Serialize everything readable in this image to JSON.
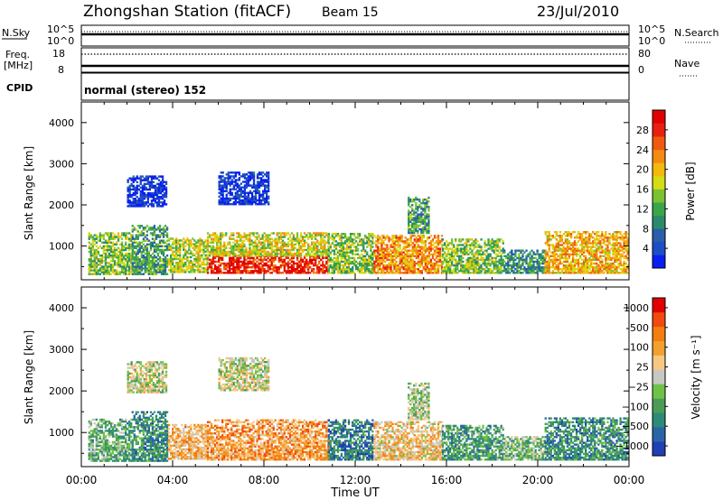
{
  "header": {
    "station": "Zhongshan Station (fitACF)",
    "beam": "Beam 15",
    "date": "23/Jul/2010"
  },
  "top_panels": {
    "nsky_label": "N.Sky",
    "nsearch_label": "N.Search",
    "left_ticks": [
      "10^5",
      "10^0"
    ],
    "right_ticks": [
      "10^5",
      "10^0"
    ],
    "freq_label_1": "Freq.",
    "freq_label_2": "[MHz]",
    "freq_ticks": [
      "18",
      "8"
    ],
    "nave_label": "Nave",
    "nave_ticks": [
      "80",
      "0"
    ],
    "cpid_label": "CPID",
    "cpid_text": "normal (stereo) 152"
  },
  "chart_data": [
    {
      "type": "heatmap",
      "name": "power",
      "title": "",
      "ylabel": "Slant Range [km]",
      "xlabel": "",
      "ylim": [
        180,
        4500
      ],
      "xlim_hours": [
        0,
        24
      ],
      "yticks": [
        "1000",
        "2000",
        "3000",
        "4000"
      ],
      "xticks": [
        "00:00",
        "04:00",
        "08:00",
        "12:00",
        "16:00",
        "20:00",
        "00:00"
      ],
      "colorbar": {
        "label": "Power [dB]",
        "ticks": [
          "4",
          "8",
          "12",
          "16",
          "20",
          "24",
          "28"
        ],
        "colors": [
          "#0a1ef0",
          "#1c4ec8",
          "#2a5ea8",
          "#2c8a6c",
          "#3aa64a",
          "#7cc230",
          "#d4dc14",
          "#f2b90c",
          "#f48a10",
          "#f05a10",
          "#e82010",
          "#e00000"
        ]
      },
      "regions": [
        {
          "t0": 0.3,
          "t1": 2.2,
          "r0": 300,
          "r1": 1300,
          "level": 0.45
        },
        {
          "t0": 2.2,
          "t1": 3.8,
          "r0": 300,
          "r1": 1500,
          "level": 0.35
        },
        {
          "t0": 3.8,
          "t1": 5.5,
          "r0": 350,
          "r1": 1200,
          "level": 0.5
        },
        {
          "t0": 5.5,
          "t1": 10.8,
          "r0": 330,
          "r1": 750,
          "level": 0.9
        },
        {
          "t0": 5.5,
          "t1": 10.8,
          "r0": 750,
          "r1": 1300,
          "level": 0.55
        },
        {
          "t0": 10.8,
          "t1": 12.8,
          "r0": 330,
          "r1": 1300,
          "level": 0.45
        },
        {
          "t0": 12.8,
          "t1": 15.8,
          "r0": 330,
          "r1": 1250,
          "level": 0.7
        },
        {
          "t0": 15.8,
          "t1": 18.5,
          "r0": 330,
          "r1": 1150,
          "level": 0.45
        },
        {
          "t0": 18.5,
          "t1": 20.3,
          "r0": 330,
          "r1": 900,
          "level": 0.3
        },
        {
          "t0": 20.3,
          "t1": 24.0,
          "r0": 330,
          "r1": 1350,
          "level": 0.65
        },
        {
          "t0": 2.0,
          "t1": 3.7,
          "r0": 1950,
          "r1": 2700,
          "level": 0.08
        },
        {
          "t0": 6.0,
          "t1": 8.2,
          "r0": 2000,
          "r1": 2800,
          "level": 0.08
        },
        {
          "t0": 14.3,
          "t1": 15.2,
          "r0": 1300,
          "r1": 2200,
          "level": 0.35
        }
      ]
    },
    {
      "type": "heatmap",
      "name": "velocity",
      "title": "",
      "ylabel": "Slant Range [km]",
      "xlabel": "Time UT",
      "ylim": [
        180,
        4500
      ],
      "xlim_hours": [
        0,
        24
      ],
      "yticks": [
        "1000",
        "2000",
        "3000",
        "4000"
      ],
      "xticks": [
        "00:00",
        "04:00",
        "08:00",
        "12:00",
        "16:00",
        "20:00",
        "00:00"
      ],
      "colorbar": {
        "label": "Velocity [m s⁻¹]",
        "ticks": [
          "1000",
          "500",
          "100",
          "25",
          "−25",
          "−100",
          "−500",
          "−1000"
        ],
        "colors": [
          "#1f3fb4",
          "#2a64a6",
          "#2c8a78",
          "#4c9c58",
          "#70c246",
          "#c8c8c2",
          "#f6c882",
          "#f2a030",
          "#f47d10",
          "#f04a10",
          "#e00000"
        ]
      },
      "regions": [
        {
          "t0": 0.3,
          "t1": 2.2,
          "r0": 300,
          "r1": 1300,
          "level": 0.35
        },
        {
          "t0": 2.2,
          "t1": 3.8,
          "r0": 300,
          "r1": 1500,
          "level": 0.25
        },
        {
          "t0": 3.8,
          "t1": 5.5,
          "r0": 350,
          "r1": 1200,
          "level": 0.65
        },
        {
          "t0": 5.5,
          "t1": 10.8,
          "r0": 330,
          "r1": 1300,
          "level": 0.7
        },
        {
          "t0": 10.8,
          "t1": 12.8,
          "r0": 330,
          "r1": 1300,
          "level": 0.2
        },
        {
          "t0": 12.8,
          "t1": 15.8,
          "r0": 330,
          "r1": 1250,
          "level": 0.6
        },
        {
          "t0": 15.8,
          "t1": 18.5,
          "r0": 330,
          "r1": 1150,
          "level": 0.3
        },
        {
          "t0": 18.5,
          "t1": 20.3,
          "r0": 330,
          "r1": 900,
          "level": 0.4
        },
        {
          "t0": 20.3,
          "t1": 24.0,
          "r0": 330,
          "r1": 1350,
          "level": 0.25
        },
        {
          "t0": 2.0,
          "t1": 3.7,
          "r0": 1950,
          "r1": 2700,
          "level": 0.5
        },
        {
          "t0": 6.0,
          "t1": 8.2,
          "r0": 2000,
          "r1": 2800,
          "level": 0.5
        },
        {
          "t0": 14.3,
          "t1": 15.2,
          "r0": 1300,
          "r1": 2200,
          "level": 0.45
        }
      ]
    }
  ],
  "xaxis_label": "Time UT"
}
